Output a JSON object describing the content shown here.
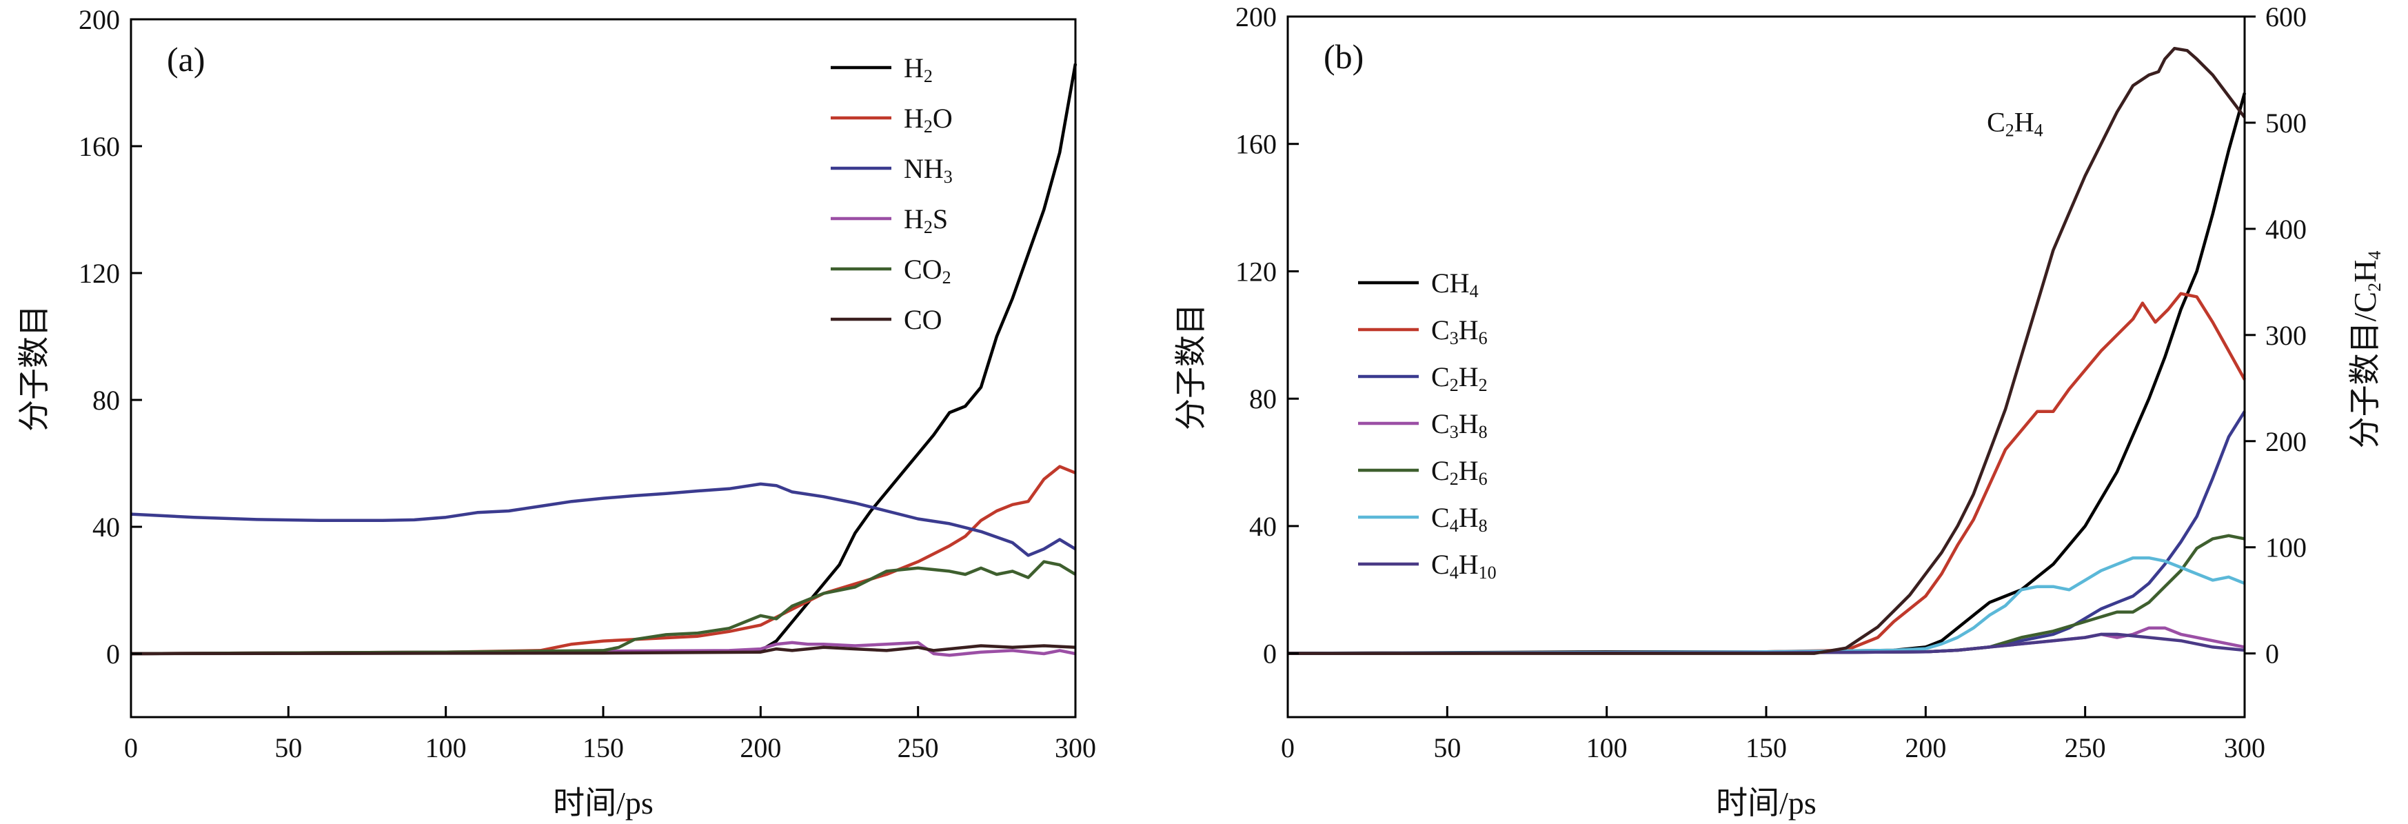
{
  "chart_data": [
    {
      "type": "line",
      "panel_label": "(a)",
      "xlabel": "时间/ps",
      "ylabel": "分子数目",
      "xlim": [
        0,
        300
      ],
      "ylim": [
        -20,
        200
      ],
      "xticks": [
        0,
        50,
        100,
        150,
        200,
        250,
        300
      ],
      "yticks": [
        0,
        40,
        80,
        120,
        160,
        200
      ],
      "legend_position": "top-right",
      "series": [
        {
          "name": "H2",
          "color": "#000000",
          "legend_parts": [
            {
              "t": "H",
              "s": false
            },
            {
              "t": "2",
              "s": true
            }
          ],
          "x": [
            0,
            150,
            200,
            205,
            210,
            215,
            220,
            225,
            230,
            235,
            240,
            245,
            250,
            255,
            260,
            265,
            270,
            275,
            280,
            285,
            290,
            295,
            300
          ],
          "y": [
            0,
            0.5,
            1,
            4,
            10,
            16,
            22,
            28,
            38,
            45,
            51,
            57,
            63,
            69,
            76,
            78,
            84,
            100,
            112,
            126,
            140,
            158,
            186
          ]
        },
        {
          "name": "H2O",
          "color": "#c0392b",
          "legend_parts": [
            {
              "t": "H",
              "s": false
            },
            {
              "t": "2",
              "s": true
            },
            {
              "t": "O",
              "s": false
            }
          ],
          "x": [
            0,
            100,
            130,
            140,
            150,
            170,
            180,
            190,
            200,
            210,
            220,
            230,
            240,
            250,
            260,
            265,
            270,
            275,
            280,
            285,
            290,
            295,
            300
          ],
          "y": [
            0,
            0.5,
            1,
            3,
            4,
            5,
            5.5,
            7,
            9,
            14,
            19,
            22,
            25,
            29,
            34,
            37,
            42,
            45,
            47,
            48,
            55,
            59,
            57
          ]
        },
        {
          "name": "NH3",
          "color": "#3b3b8f",
          "legend_parts": [
            {
              "t": "NH",
              "s": false
            },
            {
              "t": "3",
              "s": true
            }
          ],
          "x": [
            0,
            20,
            40,
            60,
            80,
            90,
            100,
            110,
            120,
            130,
            140,
            150,
            160,
            170,
            180,
            190,
            200,
            205,
            210,
            220,
            230,
            240,
            250,
            260,
            270,
            280,
            285,
            290,
            295,
            300
          ],
          "y": [
            44,
            43,
            42.3,
            42,
            42,
            42.2,
            43,
            44.5,
            45,
            46.5,
            48,
            49,
            49.8,
            50.5,
            51.3,
            52,
            53.5,
            53,
            51,
            49.5,
            47.5,
            45,
            42.5,
            41,
            38.5,
            35,
            31,
            33,
            36,
            33
          ]
        },
        {
          "name": "H2S",
          "color": "#9b4fa5",
          "legend_parts": [
            {
              "t": "H",
              "s": false
            },
            {
              "t": "2",
              "s": true
            },
            {
              "t": "S",
              "s": false
            }
          ],
          "x": [
            0,
            100,
            150,
            190,
            200,
            205,
            210,
            215,
            220,
            230,
            240,
            250,
            255,
            260,
            270,
            280,
            285,
            290,
            295,
            300
          ],
          "y": [
            0,
            0.5,
            0.8,
            1,
            1.5,
            3,
            3.5,
            3,
            3,
            2.5,
            3,
            3.5,
            0,
            -0.5,
            0.5,
            1,
            0.5,
            0,
            1,
            0
          ]
        },
        {
          "name": "CO2",
          "color": "#3e5f2e",
          "legend_parts": [
            {
              "t": "CO",
              "s": false
            },
            {
              "t": "2",
              "s": true
            }
          ],
          "x": [
            0,
            100,
            150,
            155,
            160,
            170,
            180,
            190,
            195,
            200,
            205,
            210,
            220,
            225,
            230,
            240,
            250,
            260,
            265,
            270,
            275,
            280,
            285,
            290,
            295,
            300
          ],
          "y": [
            0,
            0.5,
            1,
            2,
            4.5,
            6,
            6.5,
            8,
            10,
            12,
            11,
            15,
            19,
            20,
            21,
            26,
            27,
            26,
            25,
            27,
            25,
            26,
            24,
            29,
            28,
            25
          ]
        },
        {
          "name": "CO",
          "color": "#3a1f1f",
          "legend_parts": [
            {
              "t": "CO",
              "s": false
            }
          ],
          "x": [
            0,
            150,
            200,
            205,
            210,
            215,
            220,
            230,
            240,
            245,
            250,
            255,
            260,
            270,
            280,
            290,
            300
          ],
          "y": [
            0,
            0.2,
            0.5,
            1.5,
            1,
            1.5,
            2,
            1.5,
            1,
            1.5,
            2,
            1,
            1.5,
            2.5,
            2,
            2.5,
            2
          ]
        }
      ]
    },
    {
      "type": "line",
      "panel_label": "(b)",
      "xlabel": "时间/ps",
      "ylabel": "分子数目",
      "y2label_parts": [
        {
          "t": "分子数目/C",
          "s": false
        },
        {
          "t": "2",
          "s": true
        },
        {
          "t": "H",
          "s": false
        },
        {
          "t": "4",
          "s": true
        }
      ],
      "xlim": [
        0,
        300
      ],
      "ylim": [
        -20,
        200
      ],
      "y2lim": [
        -60,
        600
      ],
      "xticks": [
        0,
        50,
        100,
        150,
        200,
        250,
        300
      ],
      "yticks": [
        0,
        40,
        80,
        120,
        160,
        200
      ],
      "y2ticks": [
        0,
        100,
        200,
        300,
        400,
        500,
        600
      ],
      "legend_position": "middle-left",
      "annotation_parts": [
        {
          "t": "C",
          "s": false
        },
        {
          "t": "2",
          "s": true
        },
        {
          "t": "H",
          "s": false
        },
        {
          "t": "4",
          "s": true
        }
      ],
      "series": [
        {
          "name": "CH4",
          "color": "#000000",
          "legend_parts": [
            {
              "t": "CH",
              "s": false
            },
            {
              "t": "4",
              "s": true
            }
          ],
          "x": [
            0,
            100,
            150,
            190,
            200,
            205,
            210,
            215,
            220,
            225,
            230,
            240,
            250,
            260,
            270,
            275,
            280,
            285,
            290,
            295,
            300
          ],
          "y": [
            0,
            0.5,
            0.5,
            1,
            2,
            4,
            8,
            12,
            16,
            18,
            20,
            28,
            40,
            57,
            80,
            93,
            108,
            120,
            138,
            158,
            176
          ]
        },
        {
          "name": "C3H6",
          "color": "#c0392b",
          "legend_parts": [
            {
              "t": "C",
              "s": false
            },
            {
              "t": "3",
              "s": true
            },
            {
              "t": "H",
              "s": false
            },
            {
              "t": "6",
              "s": true
            }
          ],
          "x": [
            0,
            150,
            175,
            185,
            190,
            195,
            200,
            205,
            210,
            215,
            220,
            225,
            230,
            235,
            240,
            245,
            250,
            255,
            260,
            265,
            268,
            272,
            276,
            280,
            285,
            290,
            295,
            300
          ],
          "y": [
            0,
            0.5,
            1,
            5,
            10,
            14,
            18,
            25,
            34,
            42,
            53,
            64,
            70,
            76,
            76,
            83,
            89,
            95,
            100,
            105,
            110,
            104,
            108,
            113,
            112,
            104,
            95,
            86
          ]
        },
        {
          "name": "C2H2",
          "color": "#3b3b8f",
          "legend_parts": [
            {
              "t": "C",
              "s": false
            },
            {
              "t": "2",
              "s": true
            },
            {
              "t": "H",
              "s": false
            },
            {
              "t": "2",
              "s": true
            }
          ],
          "x": [
            0,
            150,
            200,
            210,
            220,
            230,
            240,
            245,
            250,
            255,
            260,
            265,
            270,
            275,
            280,
            285,
            290,
            295,
            300
          ],
          "y": [
            0,
            0.2,
            0.5,
            1,
            2,
            4,
            6,
            8,
            11,
            14,
            16,
            18,
            22,
            28,
            35,
            43,
            55,
            68,
            76
          ]
        },
        {
          "name": "C3H8",
          "color": "#9b4fa5",
          "legend_parts": [
            {
              "t": "C",
              "s": false
            },
            {
              "t": "3",
              "s": true
            },
            {
              "t": "H",
              "s": false
            },
            {
              "t": "8",
              "s": true
            }
          ],
          "x": [
            0,
            150,
            200,
            210,
            220,
            230,
            240,
            250,
            255,
            260,
            265,
            270,
            275,
            280,
            290,
            300
          ],
          "y": [
            0,
            0.2,
            0.5,
            1,
            2,
            3,
            4,
            5,
            6,
            5,
            6,
            8,
            8,
            6,
            4,
            2
          ]
        },
        {
          "name": "C2H6",
          "color": "#3e5f2e",
          "legend_parts": [
            {
              "t": "C",
              "s": false
            },
            {
              "t": "2",
              "s": true
            },
            {
              "t": "H",
              "s": false
            },
            {
              "t": "6",
              "s": true
            }
          ],
          "x": [
            0,
            150,
            200,
            210,
            220,
            230,
            240,
            250,
            260,
            265,
            270,
            275,
            280,
            285,
            290,
            295,
            300
          ],
          "y": [
            0,
            0.2,
            0.5,
            1,
            2,
            5,
            7,
            10,
            13,
            13,
            16,
            21,
            26,
            33,
            36,
            37,
            36
          ]
        },
        {
          "name": "C4H8",
          "color": "#5bb8d8",
          "legend_parts": [
            {
              "t": "C",
              "s": false
            },
            {
              "t": "4",
              "s": true
            },
            {
              "t": "H",
              "s": false
            },
            {
              "t": "8",
              "s": true
            }
          ],
          "x": [
            0,
            150,
            190,
            200,
            205,
            210,
            215,
            220,
            225,
            230,
            235,
            240,
            245,
            250,
            255,
            260,
            265,
            270,
            275,
            280,
            285,
            290,
            295,
            300
          ],
          "y": [
            0,
            0.5,
            1,
            1.5,
            3,
            5,
            8,
            12,
            15,
            20,
            21,
            21,
            20,
            23,
            26,
            28,
            30,
            30,
            29,
            27,
            25,
            23,
            24,
            22
          ]
        },
        {
          "name": "C4H10",
          "color": "#4a3a86",
          "legend_parts": [
            {
              "t": "C",
              "s": false
            },
            {
              "t": "4",
              "s": true
            },
            {
              "t": "H",
              "s": false
            },
            {
              "t": "10",
              "s": true
            }
          ],
          "x": [
            0,
            150,
            200,
            210,
            220,
            230,
            240,
            250,
            255,
            260,
            270,
            280,
            290,
            300
          ],
          "y": [
            0,
            0.2,
            0.5,
            1,
            2,
            3,
            4,
            5,
            6,
            6,
            5,
            4,
            2,
            1
          ]
        },
        {
          "name": "C2H4",
          "color": "#3a1f1f",
          "axis": "right",
          "x": [
            0,
            100,
            165,
            175,
            180,
            185,
            190,
            195,
            200,
            205,
            210,
            215,
            220,
            225,
            230,
            235,
            240,
            245,
            250,
            255,
            260,
            265,
            270,
            273,
            275,
            278,
            282,
            285,
            290,
            295,
            300
          ],
          "y": [
            0,
            0,
            0,
            5,
            15,
            25,
            40,
            55,
            75,
            95,
            120,
            150,
            190,
            230,
            280,
            330,
            380,
            415,
            450,
            480,
            510,
            535,
            545,
            548,
            560,
            570,
            568,
            560,
            545,
            525,
            505
          ]
        }
      ]
    }
  ]
}
